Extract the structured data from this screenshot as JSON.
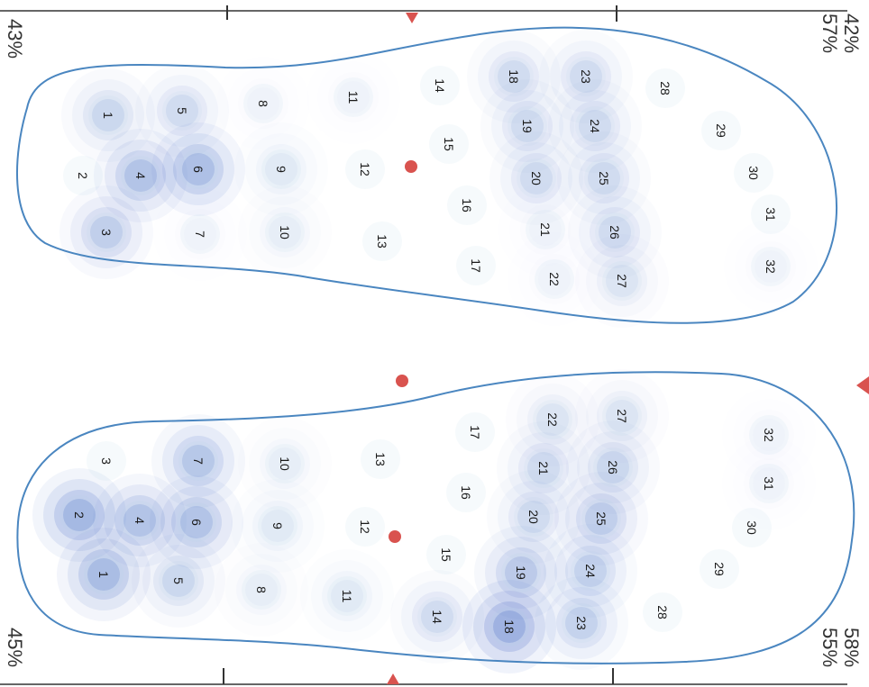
{
  "colors": {
    "outline": "#4a86c0",
    "pressure": "#5577cc",
    "marker": "#d9534f",
    "ink": "#1a1a1a"
  },
  "percent_labels": {
    "top_left": "43%",
    "top_right_upper": "42%",
    "top_right_lower": "57%",
    "bottom_left": "45%",
    "bottom_right_upper": "58%",
    "bottom_right_lower": "55%"
  },
  "feet": {
    "upper": {
      "sensors": [
        {
          "id": "1",
          "p": 0.35
        },
        {
          "id": "2",
          "p": 0.0
        },
        {
          "id": "3",
          "p": 0.45
        },
        {
          "id": "4",
          "p": 0.6
        },
        {
          "id": "5",
          "p": 0.3
        },
        {
          "id": "6",
          "p": 0.65
        },
        {
          "id": "7",
          "p": 0.05
        },
        {
          "id": "8",
          "p": 0.05
        },
        {
          "id": "9",
          "p": 0.15
        },
        {
          "id": "10",
          "p": 0.1
        },
        {
          "id": "11",
          "p": 0.05
        },
        {
          "id": "12",
          "p": 0.0
        },
        {
          "id": "13",
          "p": 0.0
        },
        {
          "id": "14",
          "p": 0.0
        },
        {
          "id": "15",
          "p": 0.0
        },
        {
          "id": "16",
          "p": 0.0
        },
        {
          "id": "17",
          "p": 0.0
        },
        {
          "id": "18",
          "p": 0.3
        },
        {
          "id": "19",
          "p": 0.3
        },
        {
          "id": "20",
          "p": 0.3
        },
        {
          "id": "21",
          "p": 0.05
        },
        {
          "id": "22",
          "p": 0.05
        },
        {
          "id": "23",
          "p": 0.3
        },
        {
          "id": "24",
          "p": 0.3
        },
        {
          "id": "25",
          "p": 0.3
        },
        {
          "id": "26",
          "p": 0.3
        },
        {
          "id": "27",
          "p": 0.2
        },
        {
          "id": "28",
          "p": 0.0
        },
        {
          "id": "29",
          "p": 0.0
        },
        {
          "id": "30",
          "p": 0.0
        },
        {
          "id": "31",
          "p": 0.0
        },
        {
          "id": "32",
          "p": 0.05
        }
      ]
    },
    "lower": {
      "sensors": [
        {
          "id": "1",
          "p": 0.7
        },
        {
          "id": "2",
          "p": 0.75
        },
        {
          "id": "3",
          "p": 0.0
        },
        {
          "id": "4",
          "p": 0.6
        },
        {
          "id": "5",
          "p": 0.35
        },
        {
          "id": "6",
          "p": 0.6
        },
        {
          "id": "7",
          "p": 0.55
        },
        {
          "id": "8",
          "p": 0.1
        },
        {
          "id": "9",
          "p": 0.15
        },
        {
          "id": "10",
          "p": 0.1
        },
        {
          "id": "11",
          "p": 0.15
        },
        {
          "id": "12",
          "p": 0.0
        },
        {
          "id": "13",
          "p": 0.0
        },
        {
          "id": "14",
          "p": 0.3
        },
        {
          "id": "15",
          "p": 0.0
        },
        {
          "id": "16",
          "p": 0.0
        },
        {
          "id": "17",
          "p": 0.0
        },
        {
          "id": "18",
          "p": 0.85
        },
        {
          "id": "19",
          "p": 0.5
        },
        {
          "id": "20",
          "p": 0.3
        },
        {
          "id": "21",
          "p": 0.3
        },
        {
          "id": "22",
          "p": 0.2
        },
        {
          "id": "23",
          "p": 0.4
        },
        {
          "id": "24",
          "p": 0.4
        },
        {
          "id": "25",
          "p": 0.45
        },
        {
          "id": "26",
          "p": 0.35
        },
        {
          "id": "27",
          "p": 0.2
        },
        {
          "id": "28",
          "p": 0.0
        },
        {
          "id": "29",
          "p": 0.0
        },
        {
          "id": "30",
          "p": 0.0
        },
        {
          "id": "31",
          "p": 0.05
        },
        {
          "id": "32",
          "p": 0.05
        }
      ]
    }
  }
}
